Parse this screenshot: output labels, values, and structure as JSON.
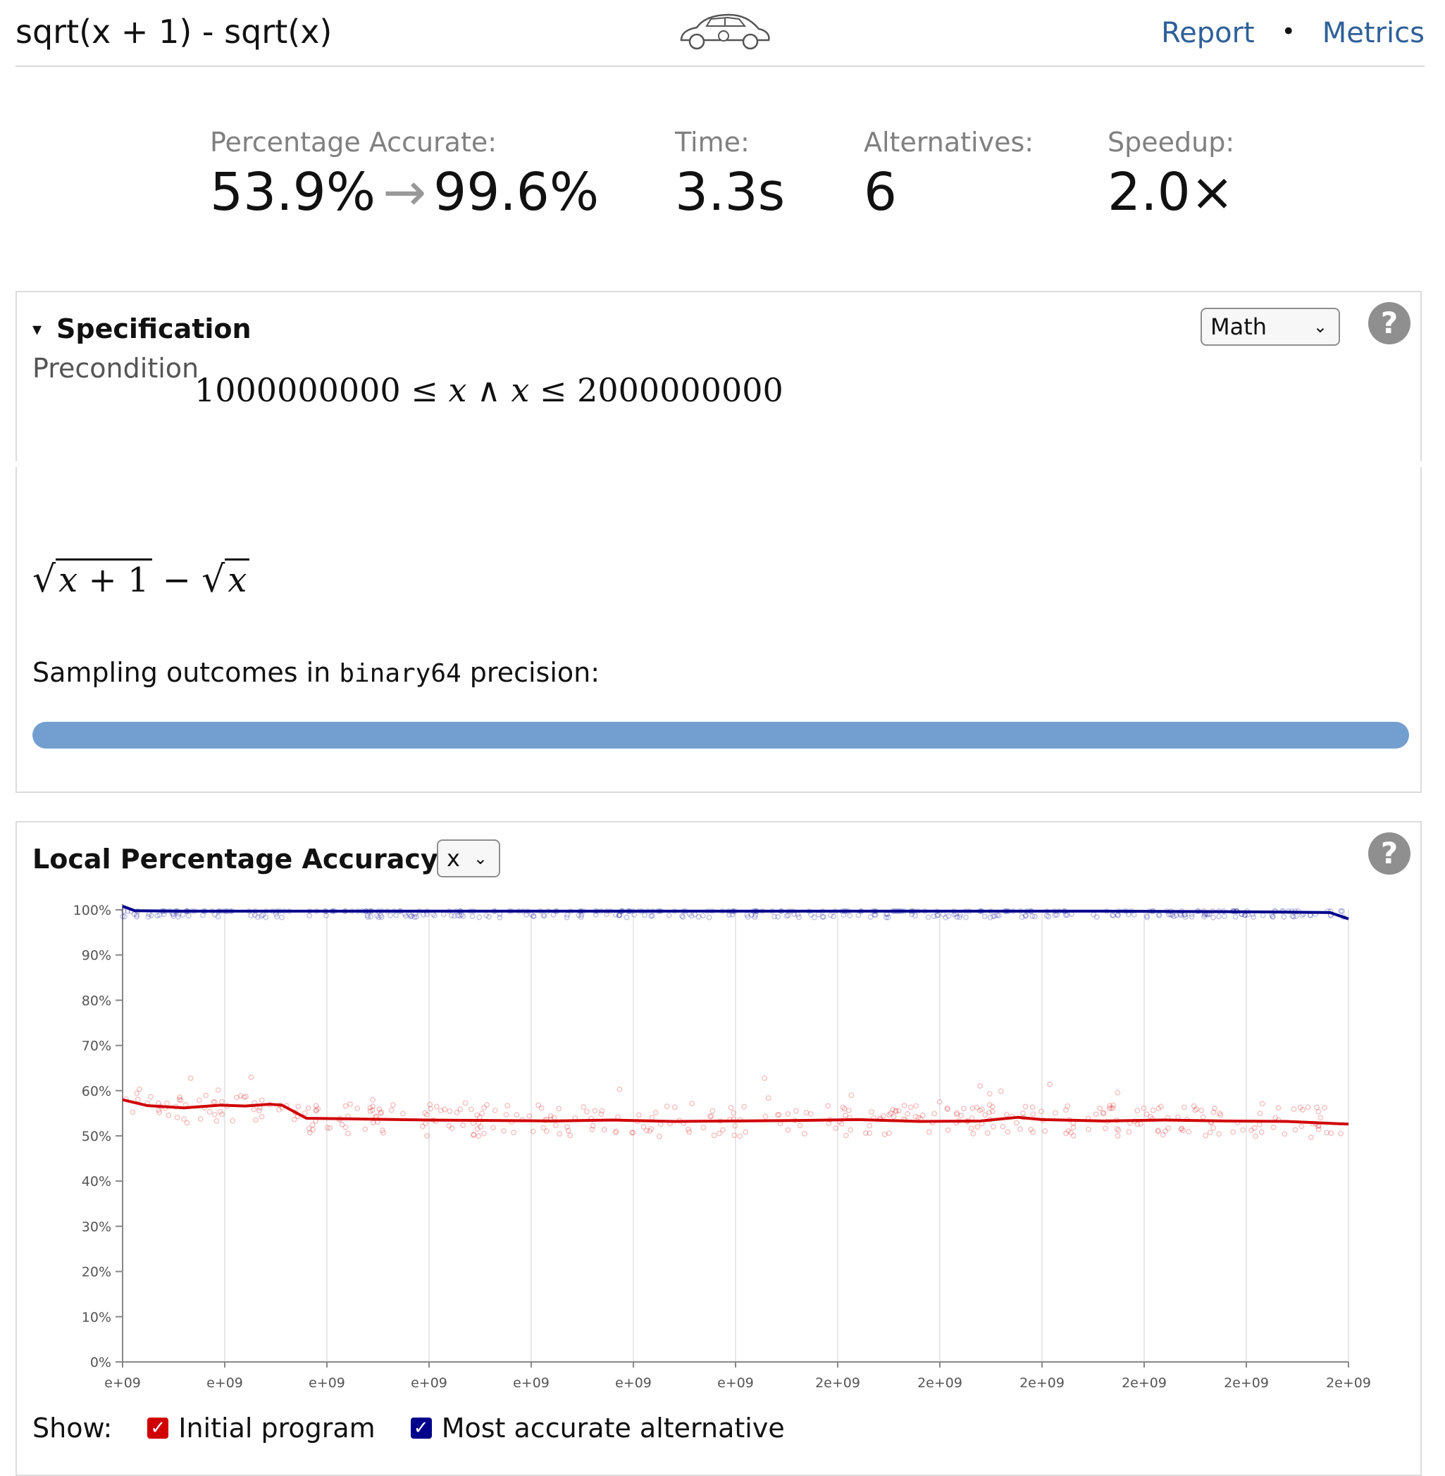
{
  "header": {
    "title": "sqrt(x + 1) - sqrt(x)",
    "links": [
      {
        "label": "Report"
      },
      {
        "label": "Metrics"
      }
    ],
    "separator": "•"
  },
  "stats": {
    "accuracy": {
      "label": "Percentage Accurate:",
      "from": "53.9%",
      "arrow": "→",
      "to": "99.6%"
    },
    "time": {
      "label": "Time:",
      "value": "3.3s"
    },
    "alternatives": {
      "label": "Alternatives:",
      "value": "6"
    },
    "speedup": {
      "label": "Speedup:",
      "value": "2.0×"
    }
  },
  "specification": {
    "heading": "Specification",
    "toggle": "▾",
    "view_select": "Math",
    "help": "?",
    "precondition_label": "Precondition",
    "precondition": {
      "low": "1000000000",
      "var": "x",
      "high": "2000000000",
      "le": "≤",
      "and": "∧"
    },
    "expression": {
      "var": "x",
      "plus": "+",
      "one": "1",
      "minus": "−"
    },
    "sampling_prefix": "Sampling outcomes in ",
    "sampling_type": "binary64",
    "sampling_suffix": " precision:",
    "sampling_bar_fraction": 1.0,
    "sampling_bar_color": "#729fcf"
  },
  "accuracy_panel": {
    "heading": "Local Percentage Accuracy vs",
    "axis_select": "x",
    "help": "?",
    "show_label": "Show:",
    "legend": [
      {
        "label": "Initial program",
        "checked": true,
        "color": "#d00000"
      },
      {
        "label": "Most accurate alternative",
        "checked": true,
        "color": "#00008b"
      }
    ]
  },
  "chart_data": {
    "type": "line",
    "title": "",
    "xlabel": "",
    "ylabel": "",
    "x_range": [
      1000000000,
      2000000000
    ],
    "y_range": [
      0,
      100
    ],
    "yticks": [
      "0%",
      "10%",
      "20%",
      "30%",
      "40%",
      "50%",
      "60%",
      "70%",
      "80%",
      "90%",
      "100%"
    ],
    "xticks": [
      "e+09",
      "e+09",
      "e+09",
      "e+09",
      "e+09",
      "e+09",
      "e+09",
      "2e+09",
      "2e+09",
      "2e+09",
      "2e+09",
      "2e+09",
      "2e+09"
    ],
    "grid": "vertical",
    "series": [
      {
        "color": "#00008b",
        "x": [
          1000000000,
          1010000000,
          1050000000,
          1200000000,
          1400000000,
          1600000000,
          1800000000,
          1900000000,
          1950000000,
          1985000000,
          2000000000
        ],
        "values": [
          100.8,
          99.8,
          99.7,
          99.7,
          99.7,
          99.7,
          99.7,
          99.6,
          99.5,
          99.4,
          98.0
        ]
      },
      {
        "color": "#d00000",
        "x": [
          1000000000,
          1020000000,
          1050000000,
          1080000000,
          1100000000,
          1120000000,
          1130000000,
          1150000000,
          1200000000,
          1250000000,
          1300000000,
          1350000000,
          1400000000,
          1450000000,
          1500000000,
          1550000000,
          1600000000,
          1650000000,
          1700000000,
          1730000000,
          1750000000,
          1800000000,
          1850000000,
          1900000000,
          1950000000,
          2000000000
        ],
        "values": [
          58,
          56.7,
          56.2,
          56.8,
          56.6,
          57.0,
          56.8,
          53.9,
          53.7,
          53.5,
          53.4,
          53.3,
          53.5,
          53.2,
          53.3,
          53.4,
          53.6,
          53.2,
          53.3,
          54.1,
          53.6,
          53.3,
          53.5,
          53.3,
          53.2,
          52.6
        ]
      }
    ],
    "scatter_note_points": true
  }
}
